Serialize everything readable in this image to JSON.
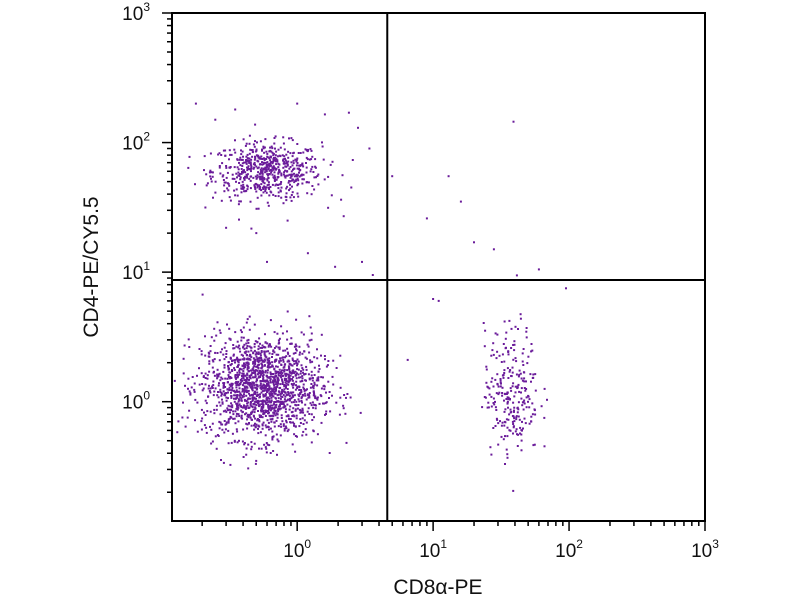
{
  "chart_data": {
    "type": "scatter",
    "xlabel": "CD8α-PE",
    "ylabel": "CD4-PE/CY5.5",
    "x_scale": "log",
    "y_scale": "log",
    "xlim": [
      0.12,
      1000
    ],
    "ylim": [
      0.12,
      1000
    ],
    "x_ticks": [
      {
        "value": 1,
        "base": "10",
        "exp": "0"
      },
      {
        "value": 10,
        "base": "10",
        "exp": "1"
      },
      {
        "value": 100,
        "base": "10",
        "exp": "2"
      },
      {
        "value": 1000,
        "base": "10",
        "exp": "3"
      }
    ],
    "y_ticks": [
      {
        "value": 1,
        "base": "10",
        "exp": "0"
      },
      {
        "value": 10,
        "base": "10",
        "exp": "1"
      },
      {
        "value": 100,
        "base": "10",
        "exp": "2"
      },
      {
        "value": 1000,
        "base": "10",
        "exp": "3"
      }
    ],
    "quadrant_gates": {
      "x": 4.6,
      "y": 8.7
    },
    "grid": false,
    "point_color": "#6a1b9a",
    "clusters": [
      {
        "region": "upper-left",
        "center": [
          0.6,
          60
        ],
        "spread_decades": [
          0.2,
          0.11
        ],
        "count": 620
      },
      {
        "region": "lower-left",
        "center": [
          0.55,
          1.3
        ],
        "spread_decades": [
          0.22,
          0.2
        ],
        "count": 1650
      },
      {
        "region": "lower-right",
        "center": [
          38,
          1.2
        ],
        "spread_decades": [
          0.1,
          0.25
        ],
        "count": 260
      }
    ],
    "scattered_points": [
      [
        0.18,
        200
      ],
      [
        0.25,
        150
      ],
      [
        0.35,
        180
      ],
      [
        1.0,
        200
      ],
      [
        1.6,
        165
      ],
      [
        2.4,
        170
      ],
      [
        2.8,
        130
      ],
      [
        3.4,
        90
      ],
      [
        2.5,
        45
      ],
      [
        0.3,
        22
      ],
      [
        0.85,
        25
      ],
      [
        1.2,
        14
      ],
      [
        1.9,
        11
      ],
      [
        3.0,
        12
      ],
      [
        39,
        145
      ],
      [
        13,
        55
      ],
      [
        16,
        35
      ],
      [
        9,
        26
      ],
      [
        20,
        17
      ],
      [
        28,
        15
      ],
      [
        60,
        10.5
      ],
      [
        95,
        7.5
      ],
      [
        5.0,
        55
      ],
      [
        0.5,
        20
      ],
      [
        3.6,
        9.5
      ],
      [
        6.5,
        2.1
      ],
      [
        10,
        6.2
      ],
      [
        11,
        6.0
      ],
      [
        0.6,
        12
      ],
      [
        2.2,
        27
      ]
    ]
  }
}
